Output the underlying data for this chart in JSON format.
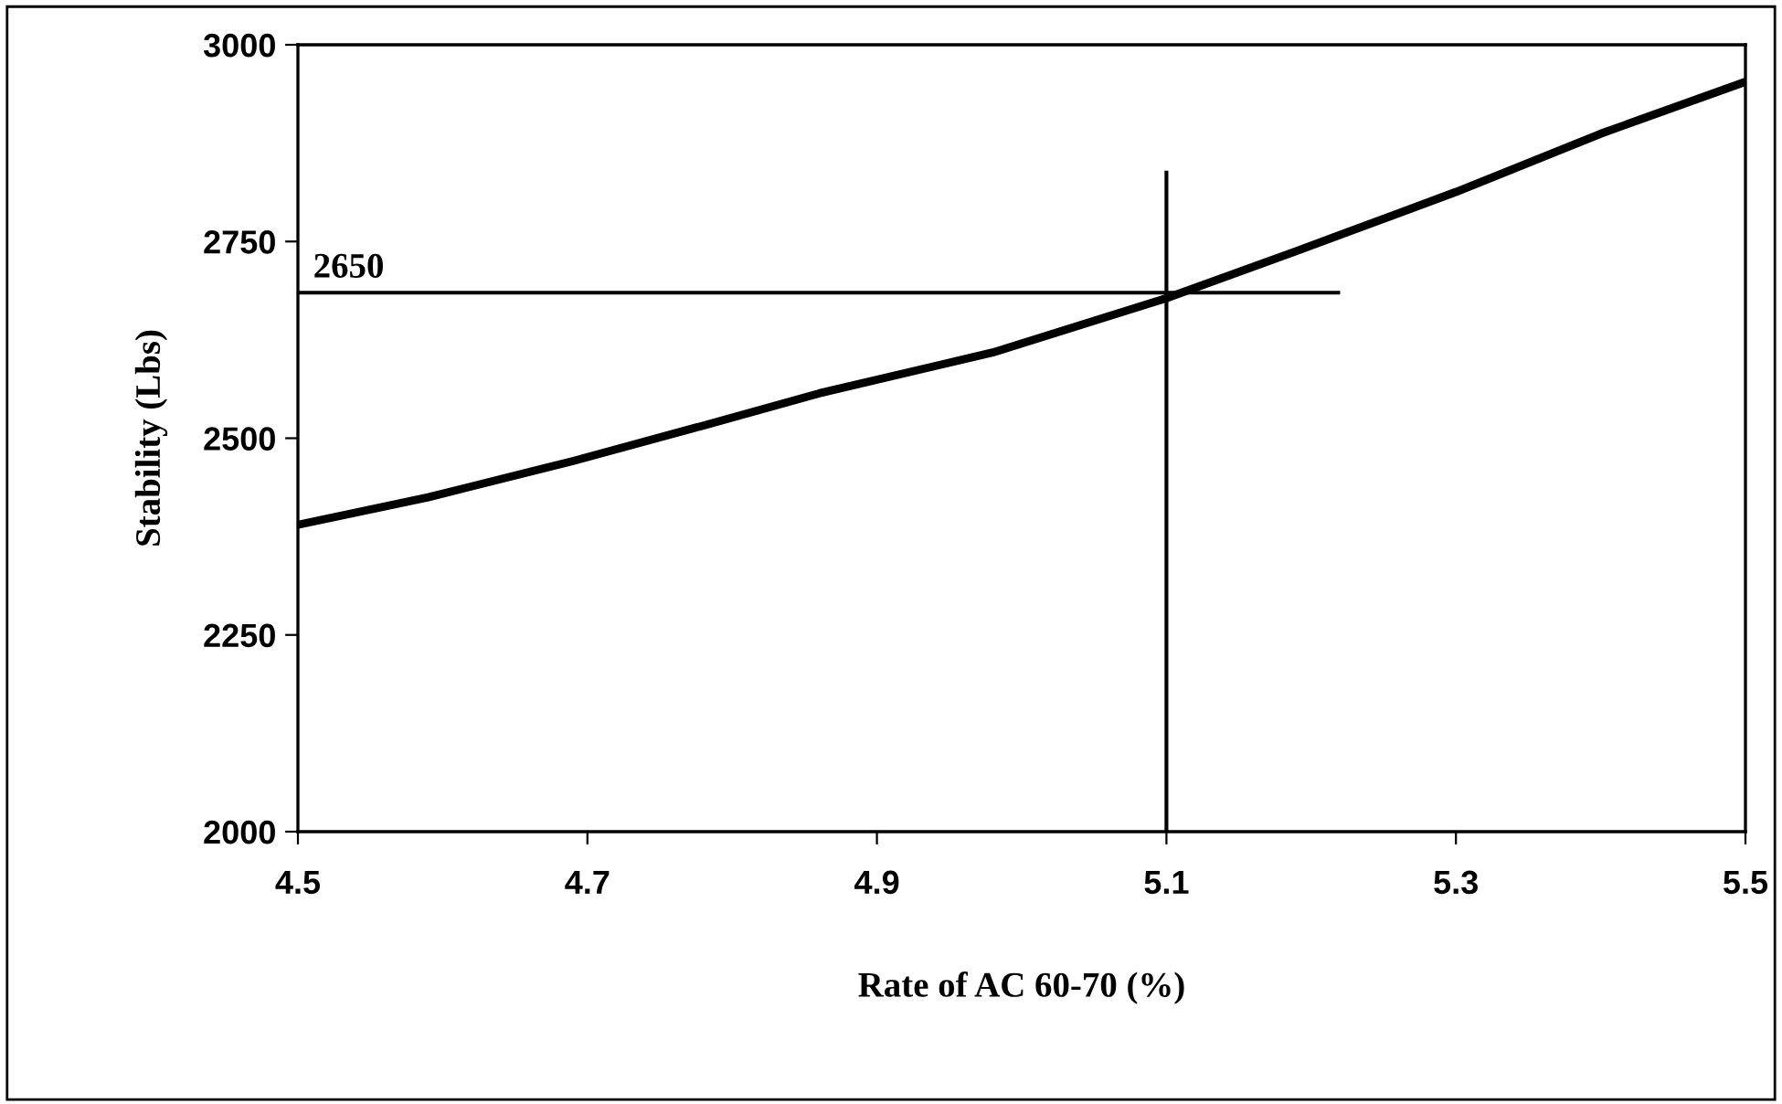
{
  "chart_data": {
    "type": "line",
    "xlabel": "Rate of AC 60-70 (%)",
    "ylabel": "Stability (Lbs)",
    "xlim": [
      4.5,
      5.5
    ],
    "xticks": [
      4.5,
      4.7,
      4.9,
      5.1,
      5.3,
      5.5
    ],
    "ylim": [
      2000,
      3000
    ],
    "yticks": [
      2000,
      2250,
      2500,
      2750,
      3000
    ],
    "grid": false,
    "legend": false,
    "series": [
      {
        "color": "#000000",
        "x": [
          4.5,
          4.59,
          4.69,
          4.78,
          4.86,
          4.98,
          5.1,
          5.19,
          5.3,
          5.4,
          5.5
        ],
        "values": [
          2390,
          2425,
          2471,
          2516,
          2557,
          2609,
          2678,
          2738,
          2813,
          2887,
          2953
        ]
      },
      {
        "color": "#000000",
        "x": [
          4.5,
          5.22
        ],
        "values": [
          2685,
          2685
        ]
      },
      {
        "color": "#000000",
        "x": [
          5.1,
          5.1
        ],
        "values": [
          2000,
          2840
        ]
      }
    ],
    "annotations": [
      {
        "text": "2650",
        "x": 4.5,
        "y": 2685
      }
    ]
  }
}
